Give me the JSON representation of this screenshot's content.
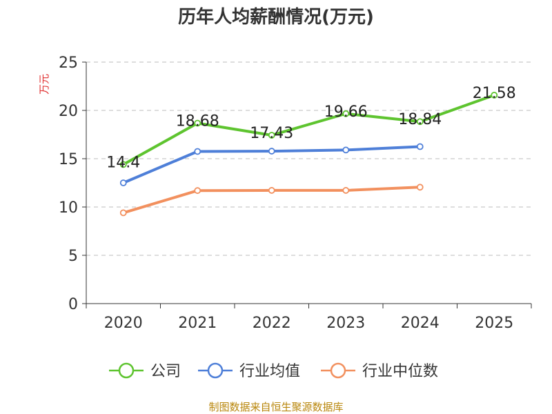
{
  "chart_data": {
    "type": "line",
    "title": "历年人均薪酬情况(万元)",
    "ylabel": "万元",
    "xlabel": "",
    "categories": [
      "2020",
      "2021",
      "2022",
      "2023",
      "2024",
      "2025"
    ],
    "ylim": [
      0,
      25
    ],
    "yticks": [
      0,
      5,
      10,
      15,
      20,
      25
    ],
    "grid": true,
    "legend_position": "bottom",
    "series": [
      {
        "name": "公司",
        "color": "#5ec42f",
        "values": [
          14.4,
          18.68,
          17.43,
          19.66,
          18.84,
          21.58
        ],
        "labels": [
          "14.4",
          "18.68",
          "17.43",
          "19.66",
          "18.84",
          "21.58"
        ]
      },
      {
        "name": "行业均值",
        "color": "#4e7fd8",
        "values": [
          12.5,
          15.75,
          15.78,
          15.9,
          16.25,
          null
        ]
      },
      {
        "name": "行业中位数",
        "color": "#f2905e",
        "values": [
          9.4,
          11.7,
          11.72,
          11.72,
          12.05,
          null
        ]
      }
    ]
  },
  "source": "制图数据来自恒生聚源数据库"
}
